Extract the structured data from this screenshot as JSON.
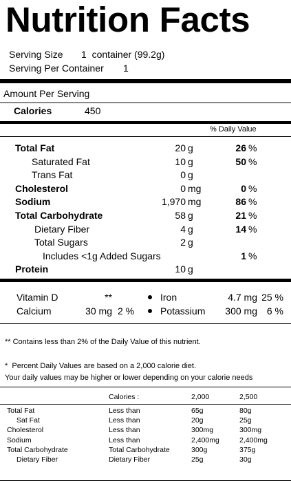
{
  "header": {
    "title": "Nutrition Facts",
    "serving_size_label": "Serving Size",
    "serving_size": "1  container (99.2g)",
    "servings_label": "Serving Per Container",
    "servings": "1"
  },
  "calories": {
    "heading": "Amount Per Serving",
    "label": "Calories",
    "value": "450"
  },
  "daily_value_heading": "% Daily Value",
  "nutrients": [
    {
      "name": "Total Fat",
      "amount": "20",
      "unit": "g",
      "dv": "26",
      "dv_unit": "%"
    },
    {
      "name": "Saturated Fat",
      "amount": "10",
      "unit": "g",
      "dv": "50",
      "dv_unit": "%"
    },
    {
      "name": "Trans Fat",
      "amount": "0",
      "unit": "g"
    },
    {
      "name": "Cholesterol",
      "amount": "0",
      "unit": "mg",
      "dv": "0",
      "dv_unit": "%"
    },
    {
      "name": "Sodium",
      "amount": "1,970",
      "unit": "mg",
      "dv": "86",
      "dv_unit": "%"
    },
    {
      "name": "Total Carbohydrate",
      "amount": "58",
      "unit": "g",
      "dv": "21",
      "dv_unit": "%"
    },
    {
      "name": "Dietary Fiber",
      "amount": "4",
      "unit": "g",
      "dv": "14",
      "dv_unit": "%"
    },
    {
      "name": "Total Sugars",
      "amount": "2",
      "unit": "g"
    },
    {
      "name": "Includes <1g Added Sugars",
      "dv": "1",
      "dv_unit": "%"
    },
    {
      "name": "Protein",
      "amount": "10",
      "unit": "g"
    }
  ],
  "minerals": [
    [
      {
        "name": "Vitamin D",
        "amount": "**"
      },
      {
        "name": "Iron",
        "amount": "4.7 mg",
        "dv": "25 %"
      }
    ],
    [
      {
        "name": "Calcium",
        "amount": "30 mg",
        "dv": "2 %"
      },
      {
        "name": "Potassium",
        "amount": "300 mg",
        "dv": "6 %"
      }
    ]
  ],
  "footnotes": [
    "** Contains less than 2% of the Daily Value of this nutrient.",
    "*  Percent Daily Values are based on a 2,000 calorie diet.",
    "Your daily values may be higher or lower depending on your calorie needs"
  ],
  "reference_table": {
    "header": [
      "Calories :",
      "2,000",
      "2,500"
    ],
    "rows": [
      [
        "Total Fat",
        "Less than",
        "65g",
        "80g"
      ],
      [
        "Sat Fat",
        "Less than",
        "20g",
        "25g"
      ],
      [
        "Cholesterol",
        "Less than",
        "300mg",
        "300mg"
      ],
      [
        "Sodium",
        "Less than",
        "2,400mg",
        "2,400mg"
      ],
      [
        "Total Carbohydrate",
        "Total Carbohydrate",
        "300g",
        "375g"
      ],
      [
        "Dietary Fiber",
        "Dietary Fiber",
        "25g",
        "30g"
      ]
    ]
  }
}
